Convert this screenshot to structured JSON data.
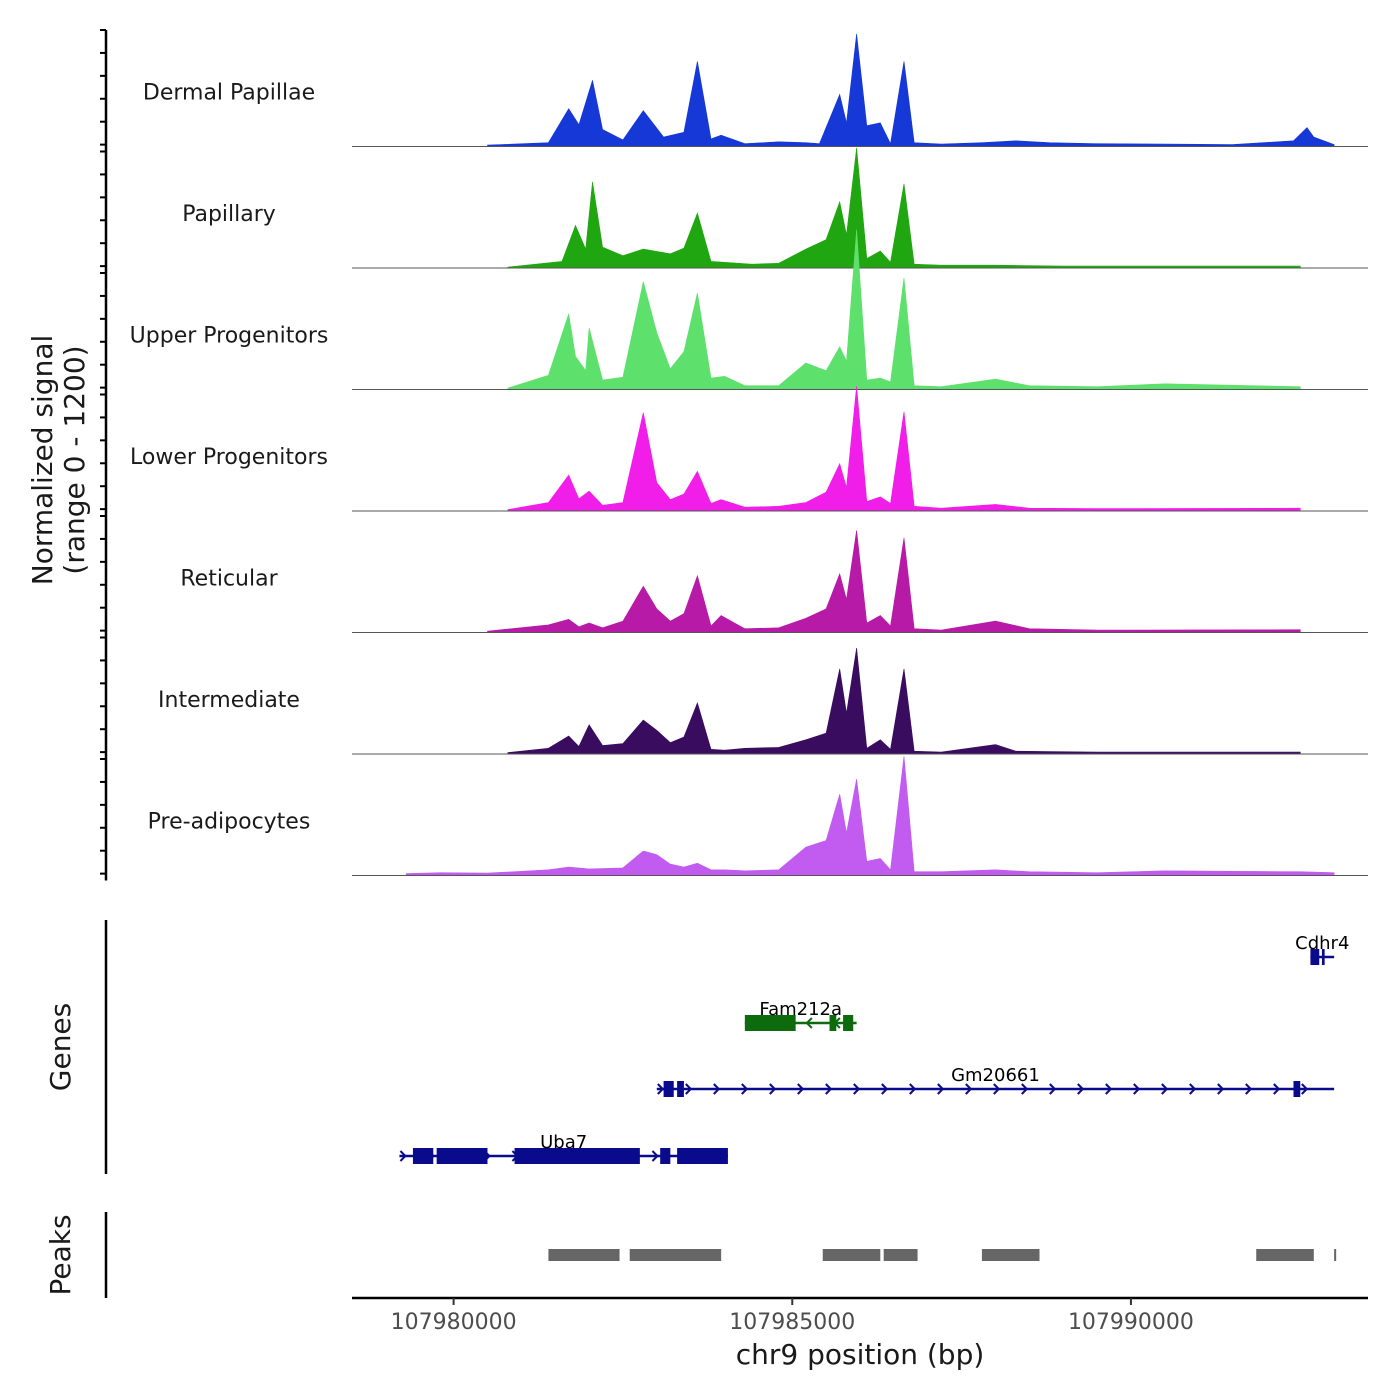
{
  "chart_data": {
    "type": "area",
    "title": "",
    "xlabel": "chr9 position (bp)",
    "ylabel": "Normalized signal\n(range 0 - 1200)",
    "ylabel_lines": [
      "Normalized signal",
      "(range 0 - 1200)"
    ],
    "ylim": [
      0,
      1200
    ],
    "xlim": [
      107978500,
      107993500
    ],
    "x_ticks": [
      107980000,
      107985000,
      107990000
    ],
    "x_tick_labels": [
      "107980000",
      "107985000",
      "107990000"
    ],
    "tracks_xlim": [
      107978500,
      107993300
    ],
    "peaks_panel_label": "Peaks",
    "genes_panel_label": "Genes",
    "series": [
      {
        "name": "Dermal Papillae",
        "color": "#1538d6",
        "values": [
          [
            107980500,
            15
          ],
          [
            107981400,
            40
          ],
          [
            107981700,
            400
          ],
          [
            107981850,
            230
          ],
          [
            107982050,
            700
          ],
          [
            107982200,
            180
          ],
          [
            107982500,
            70
          ],
          [
            107982800,
            380
          ],
          [
            107983100,
            100
          ],
          [
            107983400,
            150
          ],
          [
            107983600,
            900
          ],
          [
            107983800,
            80
          ],
          [
            107983950,
            120
          ],
          [
            107984300,
            30
          ],
          [
            107984800,
            50
          ],
          [
            107985200,
            40
          ],
          [
            107985400,
            30
          ],
          [
            107985700,
            550
          ],
          [
            107985800,
            250
          ],
          [
            107985950,
            1190
          ],
          [
            107986100,
            220
          ],
          [
            107986300,
            250
          ],
          [
            107986450,
            30
          ],
          [
            107986650,
            900
          ],
          [
            107986800,
            40
          ],
          [
            107987200,
            25
          ],
          [
            107987800,
            40
          ],
          [
            107988300,
            60
          ],
          [
            107988800,
            40
          ],
          [
            107989500,
            30
          ],
          [
            107990500,
            25
          ],
          [
            107991500,
            20
          ],
          [
            107992400,
            60
          ],
          [
            107992600,
            200
          ],
          [
            107992700,
            100
          ],
          [
            107993000,
            20
          ]
        ]
      },
      {
        "name": "Papillary",
        "color": "#1fa610",
        "values": [
          [
            107980800,
            10
          ],
          [
            107981600,
            70
          ],
          [
            107981800,
            450
          ],
          [
            107981950,
            200
          ],
          [
            107982050,
            910
          ],
          [
            107982200,
            220
          ],
          [
            107982500,
            130
          ],
          [
            107982800,
            200
          ],
          [
            107983200,
            150
          ],
          [
            107983400,
            210
          ],
          [
            107983600,
            580
          ],
          [
            107983800,
            70
          ],
          [
            107984000,
            60
          ],
          [
            107984400,
            40
          ],
          [
            107984800,
            50
          ],
          [
            107985200,
            200
          ],
          [
            107985500,
            300
          ],
          [
            107985700,
            700
          ],
          [
            107985800,
            350
          ],
          [
            107985950,
            1270
          ],
          [
            107986100,
            100
          ],
          [
            107986300,
            180
          ],
          [
            107986450,
            60
          ],
          [
            107986650,
            890
          ],
          [
            107986800,
            40
          ],
          [
            107987200,
            30
          ],
          [
            107988000,
            30
          ],
          [
            107989000,
            20
          ],
          [
            107992500,
            20
          ]
        ]
      },
      {
        "name": "Upper Progenitors",
        "color": "#5ee06c",
        "values": [
          [
            107980800,
            15
          ],
          [
            107981400,
            150
          ],
          [
            107981700,
            800
          ],
          [
            107981800,
            350
          ],
          [
            107981950,
            200
          ],
          [
            107982000,
            650
          ],
          [
            107982200,
            100
          ],
          [
            107982500,
            130
          ],
          [
            107982800,
            1140
          ],
          [
            107983000,
            600
          ],
          [
            107983200,
            220
          ],
          [
            107983400,
            400
          ],
          [
            107983600,
            1020
          ],
          [
            107983800,
            120
          ],
          [
            107984000,
            140
          ],
          [
            107984300,
            40
          ],
          [
            107984800,
            40
          ],
          [
            107985200,
            280
          ],
          [
            107985500,
            200
          ],
          [
            107985700,
            450
          ],
          [
            107985800,
            300
          ],
          [
            107985950,
            1690
          ],
          [
            107986100,
            100
          ],
          [
            107986300,
            120
          ],
          [
            107986450,
            80
          ],
          [
            107986650,
            1180
          ],
          [
            107986800,
            40
          ],
          [
            107987200,
            30
          ],
          [
            107988000,
            110
          ],
          [
            107988500,
            40
          ],
          [
            107989500,
            30
          ],
          [
            107990500,
            60
          ],
          [
            107992500,
            30
          ]
        ]
      },
      {
        "name": "Lower Progenitors",
        "color": "#f01ee8",
        "values": [
          [
            107980800,
            15
          ],
          [
            107981400,
            90
          ],
          [
            107981700,
            380
          ],
          [
            107981850,
            130
          ],
          [
            107982000,
            210
          ],
          [
            107982200,
            60
          ],
          [
            107982500,
            90
          ],
          [
            107982800,
            1040
          ],
          [
            107983000,
            300
          ],
          [
            107983200,
            120
          ],
          [
            107983400,
            180
          ],
          [
            107983600,
            420
          ],
          [
            107983800,
            80
          ],
          [
            107983950,
            120
          ],
          [
            107984300,
            40
          ],
          [
            107984800,
            50
          ],
          [
            107985200,
            90
          ],
          [
            107985500,
            200
          ],
          [
            107985700,
            500
          ],
          [
            107985800,
            250
          ],
          [
            107985950,
            1320
          ],
          [
            107986100,
            100
          ],
          [
            107986300,
            150
          ],
          [
            107986450,
            80
          ],
          [
            107986650,
            1050
          ],
          [
            107986800,
            50
          ],
          [
            107987200,
            30
          ],
          [
            107988000,
            70
          ],
          [
            107988500,
            30
          ],
          [
            107989500,
            25
          ],
          [
            107992500,
            30
          ]
        ]
      },
      {
        "name": "Reticular",
        "color": "#b81aa8",
        "values": [
          [
            107980500,
            15
          ],
          [
            107981400,
            80
          ],
          [
            107981700,
            140
          ],
          [
            107981850,
            60
          ],
          [
            107982000,
            100
          ],
          [
            107982200,
            50
          ],
          [
            107982500,
            120
          ],
          [
            107982800,
            490
          ],
          [
            107983000,
            250
          ],
          [
            107983200,
            120
          ],
          [
            107983400,
            200
          ],
          [
            107983600,
            600
          ],
          [
            107983800,
            70
          ],
          [
            107983950,
            180
          ],
          [
            107984300,
            40
          ],
          [
            107984800,
            50
          ],
          [
            107985200,
            150
          ],
          [
            107985500,
            250
          ],
          [
            107985700,
            620
          ],
          [
            107985800,
            350
          ],
          [
            107985950,
            1080
          ],
          [
            107986100,
            100
          ],
          [
            107986300,
            180
          ],
          [
            107986450,
            70
          ],
          [
            107986650,
            1000
          ],
          [
            107986800,
            40
          ],
          [
            107987200,
            25
          ],
          [
            107988000,
            120
          ],
          [
            107988500,
            40
          ],
          [
            107989500,
            25
          ],
          [
            107992500,
            30
          ]
        ]
      },
      {
        "name": "Intermediate",
        "color": "#3a0c60",
        "values": [
          [
            107980800,
            15
          ],
          [
            107981400,
            60
          ],
          [
            107981700,
            190
          ],
          [
            107981850,
            80
          ],
          [
            107982000,
            310
          ],
          [
            107982200,
            90
          ],
          [
            107982500,
            110
          ],
          [
            107982800,
            360
          ],
          [
            107983000,
            250
          ],
          [
            107983200,
            120
          ],
          [
            107983400,
            180
          ],
          [
            107983600,
            540
          ],
          [
            107983800,
            50
          ],
          [
            107984000,
            40
          ],
          [
            107984300,
            60
          ],
          [
            107984800,
            70
          ],
          [
            107985200,
            150
          ],
          [
            107985500,
            220
          ],
          [
            107985700,
            900
          ],
          [
            107985800,
            430
          ],
          [
            107985950,
            1120
          ],
          [
            107986100,
            60
          ],
          [
            107986300,
            150
          ],
          [
            107986450,
            50
          ],
          [
            107986650,
            900
          ],
          [
            107986800,
            30
          ],
          [
            107987200,
            20
          ],
          [
            107988000,
            100
          ],
          [
            107988300,
            30
          ],
          [
            107989500,
            20
          ],
          [
            107992500,
            20
          ]
        ]
      },
      {
        "name": "Pre-adipocytes",
        "color": "#c25cf0",
        "values": [
          [
            107979300,
            20
          ],
          [
            107979800,
            30
          ],
          [
            107980500,
            25
          ],
          [
            107981400,
            60
          ],
          [
            107981700,
            90
          ],
          [
            107982000,
            70
          ],
          [
            107982500,
            80
          ],
          [
            107982800,
            260
          ],
          [
            107983000,
            220
          ],
          [
            107983200,
            120
          ],
          [
            107983400,
            90
          ],
          [
            107983600,
            130
          ],
          [
            107983800,
            60
          ],
          [
            107984000,
            60
          ],
          [
            107984300,
            50
          ],
          [
            107984800,
            60
          ],
          [
            107985200,
            300
          ],
          [
            107985500,
            370
          ],
          [
            107985700,
            860
          ],
          [
            107985800,
            450
          ],
          [
            107985950,
            1020
          ],
          [
            107986100,
            150
          ],
          [
            107986300,
            180
          ],
          [
            107986450,
            60
          ],
          [
            107986650,
            1260
          ],
          [
            107986800,
            40
          ],
          [
            107987200,
            40
          ],
          [
            107988000,
            60
          ],
          [
            107988500,
            40
          ],
          [
            107989500,
            30
          ],
          [
            107990500,
            50
          ],
          [
            107992500,
            40
          ],
          [
            107993000,
            30
          ]
        ]
      }
    ],
    "genes": [
      {
        "name": "Cdhr4",
        "strand": "+",
        "row": 0,
        "color": "#0a0a8c",
        "start": 107992650,
        "end": 107993000,
        "exons": [
          [
            107992650,
            107992780
          ],
          [
            107992820,
            107992860
          ]
        ]
      },
      {
        "name": "Fam212a",
        "strand": "-",
        "row": 1,
        "color": "#0d6b0d",
        "start": 107984300,
        "end": 107985950,
        "exons": [
          [
            107984300,
            107985050
          ],
          [
            107985550,
            107985650
          ],
          [
            107985750,
            107985900
          ]
        ]
      },
      {
        "name": "Gm20661",
        "strand": "+",
        "row": 2,
        "color": "#0a0a8c",
        "start": 107983000,
        "end": 107993000,
        "exons": [
          [
            107983100,
            107983250
          ],
          [
            107983300,
            107983400
          ],
          [
            107992400,
            107992500
          ]
        ]
      },
      {
        "name": "Uba7",
        "strand": "+",
        "row": 3,
        "color": "#0a0a8c",
        "start": 107979200,
        "end": 107984050,
        "exons": [
          [
            107979400,
            107979700
          ],
          [
            107979750,
            107980500
          ],
          [
            107980900,
            107982750
          ],
          [
            107983050,
            107983200
          ],
          [
            107983300,
            107984050
          ]
        ]
      }
    ],
    "peaks": [
      [
        107981400,
        107982450
      ],
      [
        107982600,
        107983950
      ],
      [
        107985450,
        107986300
      ],
      [
        107986350,
        107986850
      ],
      [
        107987800,
        107988650
      ],
      [
        107991850,
        107992700
      ],
      [
        107993000,
        107993030
      ]
    ]
  }
}
